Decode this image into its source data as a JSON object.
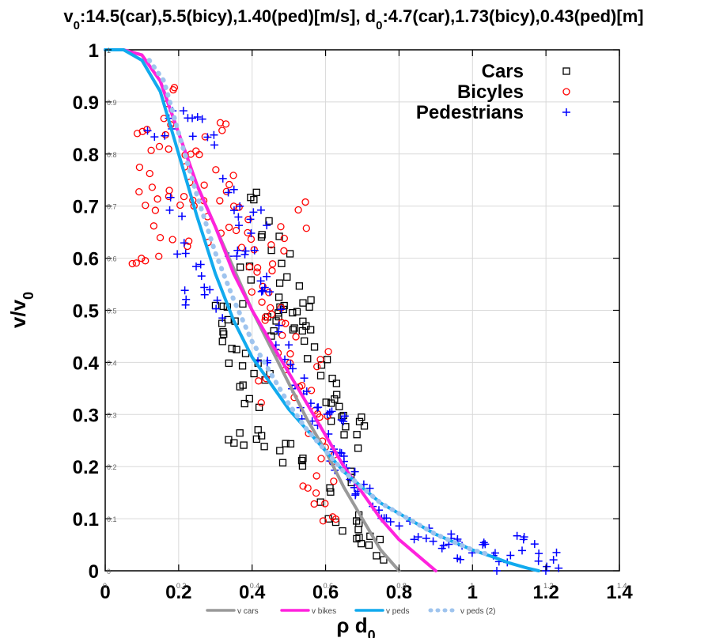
{
  "chart_data": {
    "type": "scatter",
    "title": {
      "parts": [
        {
          "t": "v",
          "style": "normal"
        },
        {
          "t": "0",
          "style": "sub"
        },
        {
          "t": ":14.5(car),5.5(bicy),1.40(ped)[m/s], d",
          "style": "normal"
        },
        {
          "t": "0",
          "style": "sub"
        },
        {
          "t": ":4.7(car),1.73(bicy),0.43(ped)[m]",
          "style": "normal"
        }
      ]
    },
    "xlabel": {
      "main": "ρ d",
      "sub": "0"
    },
    "ylabel": {
      "main": "v/v",
      "sub": "0"
    },
    "xlim": [
      0,
      1.4
    ],
    "ylim": [
      0,
      1
    ],
    "xticks_main": [
      "0",
      "0.2",
      "0.4",
      "0.6",
      "0.8",
      "1",
      "1.2",
      "1.4"
    ],
    "yticks_main": [
      "0",
      "0.1",
      "0.2",
      "0.3",
      "0.4",
      "0.5",
      "0.6",
      "0.7",
      "0.8",
      "0.9",
      "1"
    ],
    "xticks_small": [
      "0",
      "0.2",
      "0.4",
      "0.6",
      "0.8",
      "1",
      "1.2",
      "1.4"
    ],
    "yticks_small": [
      "0",
      "0.1",
      "0.2",
      "0.3",
      "0.4",
      "0.5",
      "0.6",
      "0.7",
      "0.8",
      "0.9",
      "1"
    ],
    "grid": true,
    "legend_position": "top-right",
    "scatter_series": [
      {
        "name": "Cars",
        "marker": "square",
        "color": "#000000",
        "clusters": [
          {
            "xy": [
              [
                0.31,
                0.45
              ],
              [
                0.32,
                0.49
              ],
              [
                0.34,
                0.44
              ],
              [
                0.36,
                0.4
              ],
              [
                0.38,
                0.36
              ],
              [
                0.4,
                0.33
              ],
              [
                0.42,
                0.38
              ],
              [
                0.44,
                0.47
              ],
              [
                0.46,
                0.5
              ],
              [
                0.48,
                0.53
              ],
              [
                0.5,
                0.52
              ],
              [
                0.52,
                0.48
              ],
              [
                0.54,
                0.46
              ],
              [
                0.56,
                0.44
              ],
              [
                0.58,
                0.4
              ],
              [
                0.6,
                0.36
              ],
              [
                0.62,
                0.32
              ],
              [
                0.64,
                0.3
              ],
              [
                0.66,
                0.28
              ],
              [
                0.68,
                0.27
              ],
              [
                0.7,
                0.26
              ],
              [
                0.66,
                0.17
              ],
              [
                0.68,
                0.11
              ],
              [
                0.7,
                0.07
              ],
              [
                0.72,
                0.05
              ],
              [
                0.74,
                0.03
              ],
              [
                0.36,
                0.27
              ],
              [
                0.4,
                0.26
              ],
              [
                0.45,
                0.24
              ],
              [
                0.5,
                0.22
              ],
              [
                0.55,
                0.2
              ],
              [
                0.6,
                0.15
              ],
              [
                0.63,
                0.1
              ],
              [
                0.4,
                0.72
              ],
              [
                0.42,
                0.65
              ],
              [
                0.48,
                0.62
              ],
              [
                0.5,
                0.57
              ],
              [
                0.38,
                0.56
              ],
              [
                0.55,
                0.5
              ],
              [
                0.35,
                0.5
              ]
            ],
            "spread": [
              0.03,
              0.025
            ],
            "repeat": 3
          }
        ]
      },
      {
        "name": "Bicyles",
        "marker": "circle",
        "color": "#ff0000",
        "clusters": [
          {
            "xy": [
              [
                0.1,
                0.82
              ],
              [
                0.11,
                0.75
              ],
              [
                0.12,
                0.68
              ],
              [
                0.13,
                0.62
              ],
              [
                0.1,
                0.6
              ],
              [
                0.14,
                0.79
              ],
              [
                0.16,
                0.86
              ],
              [
                0.18,
                0.92
              ],
              [
                0.2,
                0.78
              ],
              [
                0.22,
                0.72
              ],
              [
                0.24,
                0.7
              ],
              [
                0.26,
                0.82
              ],
              [
                0.28,
                0.77
              ],
              [
                0.3,
                0.84
              ],
              [
                0.32,
                0.75
              ],
              [
                0.34,
                0.7
              ],
              [
                0.36,
                0.68
              ],
              [
                0.38,
                0.62
              ],
              [
                0.4,
                0.6
              ],
              [
                0.42,
                0.56
              ],
              [
                0.44,
                0.53
              ],
              [
                0.46,
                0.5
              ],
              [
                0.48,
                0.48
              ],
              [
                0.5,
                0.44
              ],
              [
                0.52,
                0.4
              ],
              [
                0.54,
                0.36
              ],
              [
                0.56,
                0.32
              ],
              [
                0.58,
                0.28
              ],
              [
                0.6,
                0.24
              ],
              [
                0.62,
                0.2
              ],
              [
                0.56,
                0.16
              ],
              [
                0.58,
                0.13
              ],
              [
                0.6,
                0.1
              ],
              [
                0.52,
                0.68
              ],
              [
                0.5,
                0.64
              ],
              [
                0.3,
                0.66
              ],
              [
                0.2,
                0.64
              ],
              [
                0.16,
                0.72
              ],
              [
                0.44,
                0.6
              ],
              [
                0.58,
                0.42
              ],
              [
                0.42,
                0.35
              ]
            ],
            "spread": [
              0.03,
              0.03
            ],
            "repeat": 3
          }
        ]
      },
      {
        "name": "Pedestrians",
        "marker": "plus",
        "color": "#0000ff",
        "clusters": [
          {
            "xy": [
              [
                0.14,
                0.85
              ],
              [
                0.18,
                0.87
              ],
              [
                0.22,
                0.89
              ],
              [
                0.26,
                0.85
              ],
              [
                0.3,
                0.82
              ],
              [
                0.33,
                0.74
              ],
              [
                0.36,
                0.7
              ],
              [
                0.38,
                0.66
              ],
              [
                0.4,
                0.6
              ],
              [
                0.42,
                0.56
              ],
              [
                0.44,
                0.52
              ],
              [
                0.46,
                0.48
              ],
              [
                0.48,
                0.44
              ],
              [
                0.5,
                0.4
              ],
              [
                0.52,
                0.36
              ],
              [
                0.54,
                0.33
              ],
              [
                0.56,
                0.3
              ],
              [
                0.58,
                0.28
              ],
              [
                0.6,
                0.25
              ],
              [
                0.62,
                0.22
              ],
              [
                0.64,
                0.2
              ],
              [
                0.66,
                0.18
              ],
              [
                0.68,
                0.16
              ],
              [
                0.7,
                0.14
              ],
              [
                0.74,
                0.12
              ],
              [
                0.78,
                0.1
              ],
              [
                0.82,
                0.08
              ],
              [
                0.86,
                0.07
              ],
              [
                0.9,
                0.06
              ],
              [
                0.94,
                0.05
              ],
              [
                0.98,
                0.04
              ],
              [
                1.02,
                0.06
              ],
              [
                1.05,
                0.03
              ],
              [
                1.08,
                0.02
              ],
              [
                1.12,
                0.05
              ],
              [
                1.16,
                0.04
              ],
              [
                1.2,
                0.02
              ],
              [
                1.24,
                0.02
              ],
              [
                0.22,
                0.62
              ],
              [
                0.26,
                0.58
              ],
              [
                0.28,
                0.54
              ],
              [
                0.3,
                0.5
              ],
              [
                0.24,
                0.52
              ],
              [
                0.2,
                0.7
              ],
              [
                0.42,
                0.68
              ],
              [
                0.36,
                0.6
              ],
              [
                0.6,
                0.32
              ],
              [
                0.64,
                0.28
              ],
              [
                0.44,
                0.42
              ],
              [
                0.96,
                0.07
              ]
            ],
            "spread": [
              0.025,
              0.022
            ],
            "repeat": 3
          }
        ]
      }
    ],
    "curves": [
      {
        "name": "v cars",
        "color": "#999999",
        "dash": false,
        "points": [
          [
            0,
            1
          ],
          [
            0.05,
            1
          ],
          [
            0.1,
            0.99
          ],
          [
            0.15,
            0.94
          ],
          [
            0.2,
            0.84
          ],
          [
            0.25,
            0.74
          ],
          [
            0.3,
            0.66
          ],
          [
            0.35,
            0.58
          ],
          [
            0.4,
            0.5
          ],
          [
            0.45,
            0.43
          ],
          [
            0.5,
            0.36
          ],
          [
            0.55,
            0.29
          ],
          [
            0.6,
            0.23
          ],
          [
            0.65,
            0.16
          ],
          [
            0.7,
            0.1
          ],
          [
            0.75,
            0.04
          ],
          [
            0.8,
            0
          ]
        ]
      },
      {
        "name": "v bikes",
        "color": "#ff22dd",
        "dash": false,
        "points": [
          [
            0,
            1
          ],
          [
            0.05,
            1
          ],
          [
            0.1,
            0.99
          ],
          [
            0.15,
            0.94
          ],
          [
            0.2,
            0.84
          ],
          [
            0.25,
            0.74
          ],
          [
            0.3,
            0.66
          ],
          [
            0.35,
            0.57
          ],
          [
            0.4,
            0.5
          ],
          [
            0.45,
            0.44
          ],
          [
            0.5,
            0.38
          ],
          [
            0.55,
            0.32
          ],
          [
            0.6,
            0.26
          ],
          [
            0.65,
            0.2
          ],
          [
            0.7,
            0.15
          ],
          [
            0.75,
            0.1
          ],
          [
            0.8,
            0.06
          ],
          [
            0.85,
            0.03
          ],
          [
            0.9,
            0
          ]
        ]
      },
      {
        "name": "v peds",
        "color": "#11aaee",
        "dash": false,
        "points": [
          [
            0,
            1
          ],
          [
            0.05,
            1
          ],
          [
            0.1,
            0.98
          ],
          [
            0.15,
            0.92
          ],
          [
            0.2,
            0.8
          ],
          [
            0.25,
            0.68
          ],
          [
            0.3,
            0.57
          ],
          [
            0.35,
            0.48
          ],
          [
            0.4,
            0.41
          ],
          [
            0.45,
            0.36
          ],
          [
            0.5,
            0.31
          ],
          [
            0.55,
            0.27
          ],
          [
            0.6,
            0.23
          ],
          [
            0.65,
            0.19
          ],
          [
            0.7,
            0.16
          ],
          [
            0.75,
            0.13
          ],
          [
            0.8,
            0.11
          ],
          [
            0.85,
            0.09
          ],
          [
            0.9,
            0.07
          ],
          [
            0.95,
            0.055
          ],
          [
            1.0,
            0.04
          ],
          [
            1.05,
            0.028
          ],
          [
            1.1,
            0.015
          ],
          [
            1.15,
            0.005
          ],
          [
            1.18,
            0
          ]
        ]
      },
      {
        "name": "v peds (2)",
        "color": "#9fc4ee",
        "dash": true,
        "points": [
          [
            0.12,
            0.98
          ],
          [
            0.16,
            0.94
          ],
          [
            0.2,
            0.84
          ],
          [
            0.25,
            0.72
          ],
          [
            0.3,
            0.61
          ],
          [
            0.35,
            0.52
          ],
          [
            0.4,
            0.44
          ],
          [
            0.45,
            0.38
          ],
          [
            0.5,
            0.32
          ],
          [
            0.55,
            0.27
          ],
          [
            0.6,
            0.23
          ],
          [
            0.65,
            0.19
          ],
          [
            0.7,
            0.16
          ],
          [
            0.75,
            0.13
          ],
          [
            0.8,
            0.11
          ],
          [
            0.85,
            0.09
          ],
          [
            0.9,
            0.07
          ],
          [
            0.95,
            0.055
          ],
          [
            1.0,
            0.04
          ],
          [
            1.05,
            0.03
          ]
        ]
      }
    ],
    "legend_main": [
      {
        "label": "Cars",
        "marker": "square",
        "color": "#000000"
      },
      {
        "label": "Bicyles",
        "marker": "circle",
        "color": "#ff0000"
      },
      {
        "label": "Pedestrians",
        "marker": "plus",
        "color": "#0000ff"
      }
    ],
    "legend_lines": [
      {
        "label": "v cars",
        "color": "#999999",
        "dash": false
      },
      {
        "label": "v bikes",
        "color": "#ff22dd",
        "dash": false
      },
      {
        "label": "v peds",
        "color": "#11aaee",
        "dash": false
      },
      {
        "label": "v peds (2)",
        "color": "#9fc4ee",
        "dash": true
      }
    ]
  }
}
